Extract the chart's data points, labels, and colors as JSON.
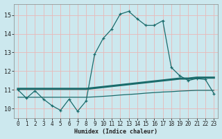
{
  "xlabel": "Humidex (Indice chaleur)",
  "xlim": [
    -0.5,
    23.5
  ],
  "ylim": [
    9.5,
    15.6
  ],
  "yticks": [
    10,
    11,
    12,
    13,
    14,
    15
  ],
  "xticks": [
    0,
    1,
    2,
    3,
    4,
    5,
    6,
    7,
    8,
    9,
    10,
    11,
    12,
    13,
    14,
    15,
    16,
    17,
    18,
    19,
    20,
    21,
    22,
    23
  ],
  "bg_color": "#cce8ee",
  "grid_color": "#e8b8b8",
  "line_color": "#1a6b6b",
  "line1_x": [
    0,
    1,
    2,
    3,
    4,
    5,
    6,
    7,
    8,
    9,
    10,
    11,
    12,
    13,
    14,
    15,
    16,
    17,
    18,
    19,
    20,
    21,
    22,
    23
  ],
  "line1_y": [
    11.0,
    10.55,
    10.95,
    10.5,
    10.15,
    9.9,
    10.5,
    9.85,
    10.4,
    12.9,
    13.75,
    14.25,
    15.05,
    15.2,
    14.8,
    14.45,
    14.45,
    14.7,
    12.2,
    11.75,
    11.5,
    11.6,
    11.55,
    10.8
  ],
  "line2_x": [
    0,
    1,
    2,
    3,
    4,
    5,
    6,
    7,
    8,
    9,
    10,
    11,
    12,
    13,
    14,
    15,
    16,
    17,
    18,
    19,
    20,
    21,
    22,
    23
  ],
  "line2_y": [
    11.05,
    11.05,
    11.05,
    11.05,
    11.05,
    11.05,
    11.05,
    11.05,
    11.05,
    11.1,
    11.15,
    11.2,
    11.25,
    11.3,
    11.35,
    11.4,
    11.45,
    11.5,
    11.55,
    11.6,
    11.6,
    11.65,
    11.65,
    11.65
  ],
  "line3_x": [
    0,
    1,
    2,
    3,
    4,
    5,
    6,
    7,
    8,
    9,
    10,
    11,
    12,
    13,
    14,
    15,
    16,
    17,
    18,
    19,
    20,
    21,
    22,
    23
  ],
  "line3_y": [
    10.6,
    10.6,
    10.6,
    10.6,
    10.6,
    10.6,
    10.6,
    10.6,
    10.6,
    10.62,
    10.65,
    10.68,
    10.72,
    10.75,
    10.78,
    10.82,
    10.85,
    10.88,
    10.9,
    10.93,
    10.95,
    10.97,
    10.97,
    10.97
  ],
  "tick_fontsize": 5.5,
  "xlabel_fontsize": 6.0
}
